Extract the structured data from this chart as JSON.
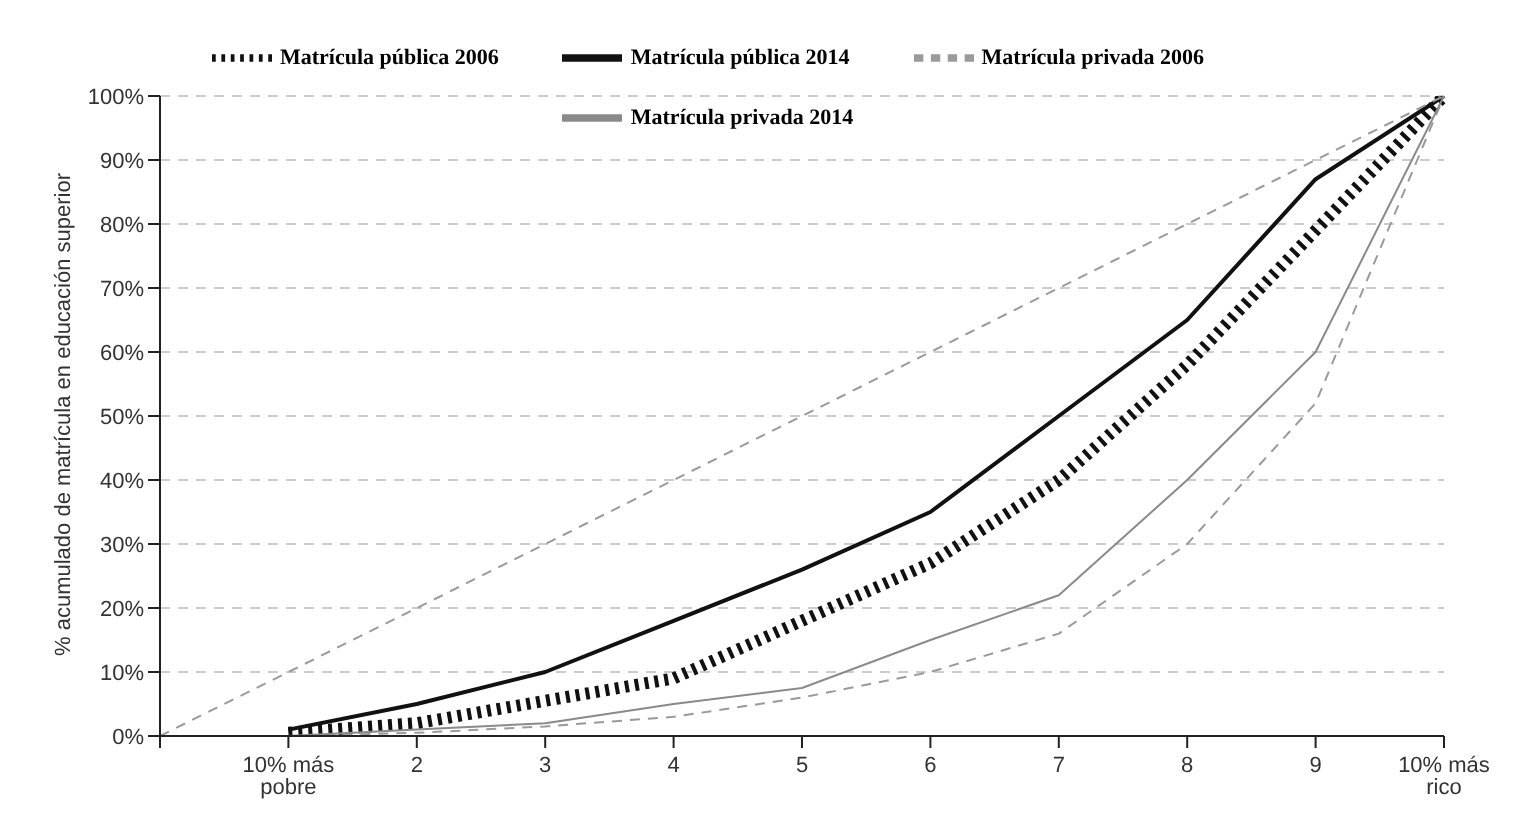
{
  "chart_data": {
    "type": "line",
    "ylabel": "% acumulado de matrícula en educación superior",
    "categories": [
      null,
      "10% más pobre",
      "2",
      "3",
      "4",
      "5",
      "6",
      "7",
      "8",
      "9",
      "10% más rico"
    ],
    "series": [
      {
        "name": "Matrícula pública 2006",
        "color": "#111111",
        "line_style": "dotted",
        "values": [
          null,
          0.5,
          2,
          5.5,
          9,
          18,
          27,
          40,
          58,
          79,
          100
        ]
      },
      {
        "name": "Matrícula pública 2014",
        "color": "#111111",
        "line_style": "solid",
        "values": [
          null,
          1,
          5,
          10,
          18,
          26,
          35,
          50,
          65,
          87,
          100
        ]
      },
      {
        "name": "Matrícula privada 2006",
        "color": "#9a9a9a",
        "line_style": "dashed",
        "values": [
          null,
          0,
          0.5,
          1.5,
          3,
          6,
          10,
          16,
          30,
          52,
          100
        ]
      },
      {
        "name": "Matrícula privada 2014",
        "color": "#8a8a8a",
        "line_style": "solid",
        "values": [
          null,
          0,
          1,
          2,
          5,
          7.5,
          15,
          22,
          40,
          60,
          100
        ]
      },
      {
        "color": "#9a9a9a",
        "line_style": "dashed",
        "values": [
          0,
          10,
          20,
          30,
          40,
          50,
          60,
          70,
          80,
          90,
          100
        ]
      }
    ],
    "ylim": [
      0,
      100
    ],
    "yticks": [
      {
        "value": 0,
        "label": "0%"
      },
      {
        "value": 10,
        "label": "10%"
      },
      {
        "value": 20,
        "label": "20%"
      },
      {
        "value": 30,
        "label": "30%"
      },
      {
        "value": 40,
        "label": "40%"
      },
      {
        "value": 50,
        "label": "50%"
      },
      {
        "value": 60,
        "label": "60%"
      },
      {
        "value": 70,
        "label": "70%"
      },
      {
        "value": 80,
        "label": "80%"
      },
      {
        "value": 90,
        "label": "90%"
      },
      {
        "value": 100,
        "label": "100%"
      }
    ],
    "grid": "y",
    "legend": "top",
    "marker": "none"
  }
}
